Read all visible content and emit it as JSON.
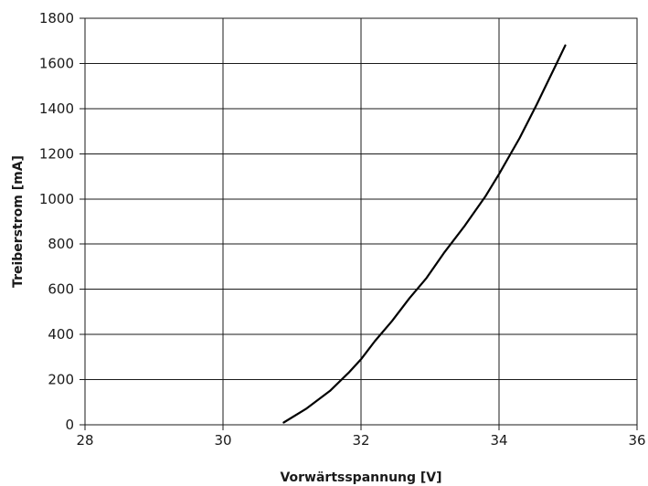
{
  "chart_data": {
    "type": "line",
    "title": "",
    "xlabel": "Vorwärtsspannung [V]",
    "ylabel": "Treiberstrom [mA]",
    "xlim": [
      28,
      36
    ],
    "ylim": [
      0,
      1800
    ],
    "xticks": [
      28,
      30,
      32,
      34,
      36
    ],
    "yticks": [
      0,
      200,
      400,
      600,
      800,
      1000,
      1200,
      1400,
      1600,
      1800
    ],
    "grid": true,
    "legend": "none",
    "line_color": "#000000",
    "series": [
      {
        "x": [
          30.88,
          31.2,
          31.55,
          31.82,
          32.0,
          32.2,
          32.45,
          32.7,
          32.95,
          33.2,
          33.5,
          33.8,
          34.0,
          34.3,
          34.55,
          34.85,
          34.96
        ],
        "y": [
          10,
          70,
          150,
          230,
          290,
          370,
          460,
          560,
          650,
          760,
          880,
          1010,
          1110,
          1270,
          1420,
          1610,
          1680
        ]
      }
    ]
  }
}
